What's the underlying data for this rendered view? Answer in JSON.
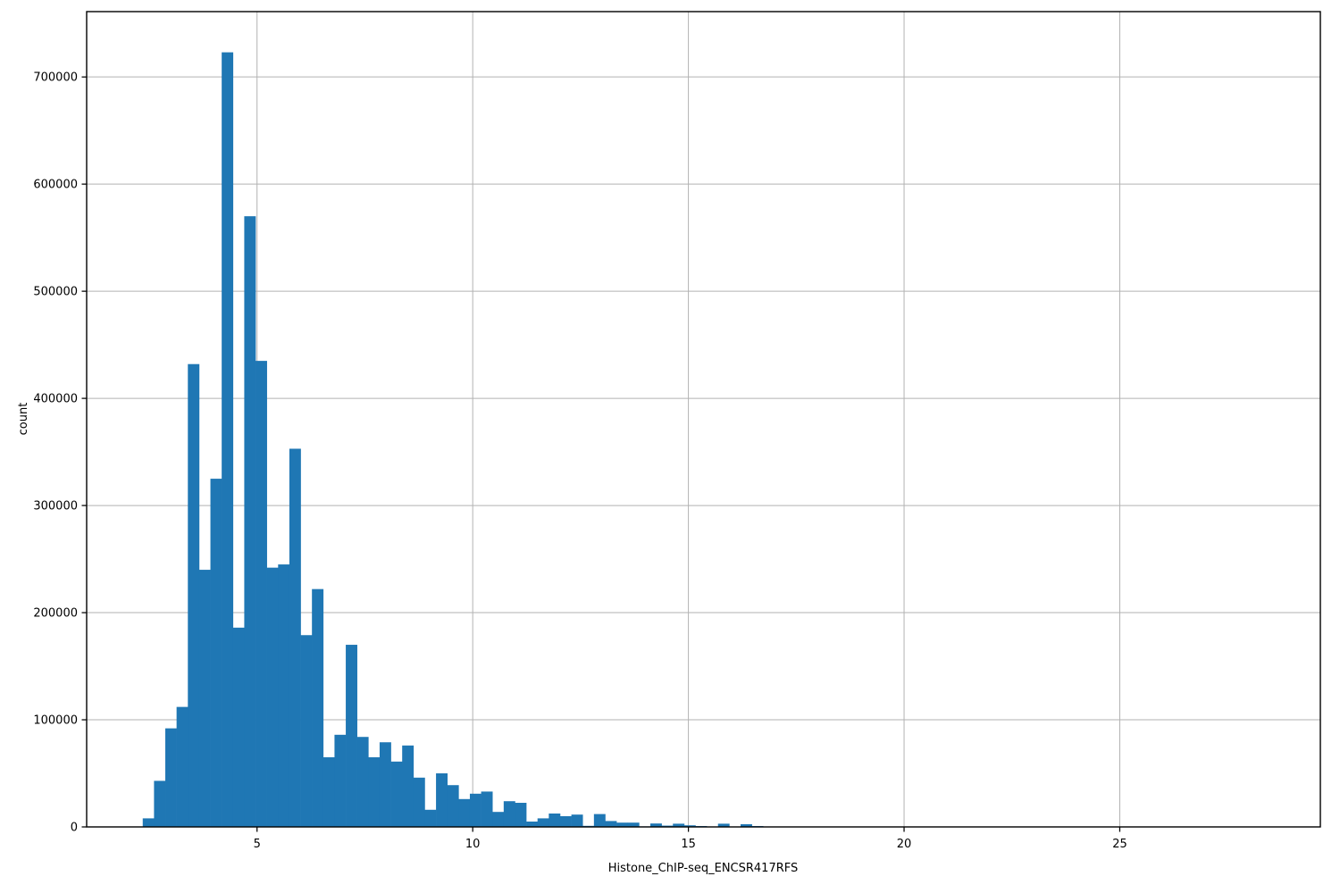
{
  "figure": {
    "background": "#ffffff"
  },
  "chart_data": {
    "type": "bar",
    "subtype": "histogram",
    "title": "",
    "xlabel": "Histone_ChIP-seq_ENCSR417RFS",
    "ylabel": "count",
    "xlim": [
      1.05,
      29.65
    ],
    "ylim": [
      0,
      761000
    ],
    "xtick_values": [
      5,
      10,
      15,
      20,
      25
    ],
    "xtick_labels": [
      "5",
      "10",
      "15",
      "20",
      "25"
    ],
    "ytick_values": [
      0,
      100000,
      200000,
      300000,
      400000,
      500000,
      600000,
      700000
    ],
    "ytick_labels": [
      "0",
      "100000",
      "200000",
      "300000",
      "400000",
      "500000",
      "600000",
      "700000"
    ],
    "grid": true,
    "legend_position": "none",
    "bin_start": 2.35,
    "bin_width": 0.2615,
    "counts": [
      8000,
      43000,
      92000,
      112000,
      432000,
      240000,
      325000,
      723000,
      186000,
      570000,
      435000,
      242000,
      245000,
      353000,
      179000,
      222000,
      65000,
      86000,
      170000,
      84000,
      65000,
      79000,
      61000,
      76000,
      46000,
      16000,
      50000,
      39000,
      26000,
      31000,
      33000,
      14000,
      24000,
      22500,
      5000,
      8000,
      12500,
      10000,
      11500,
      1000,
      12000,
      5500,
      4000,
      4000,
      500,
      3200,
      1200,
      3000,
      1500,
      800,
      300,
      3000,
      300,
      2500,
      800
    ],
    "colors": {
      "bar": "#1f77b4",
      "grid": "#b2b2b2",
      "spine": "#000000",
      "text": "#000000"
    }
  }
}
